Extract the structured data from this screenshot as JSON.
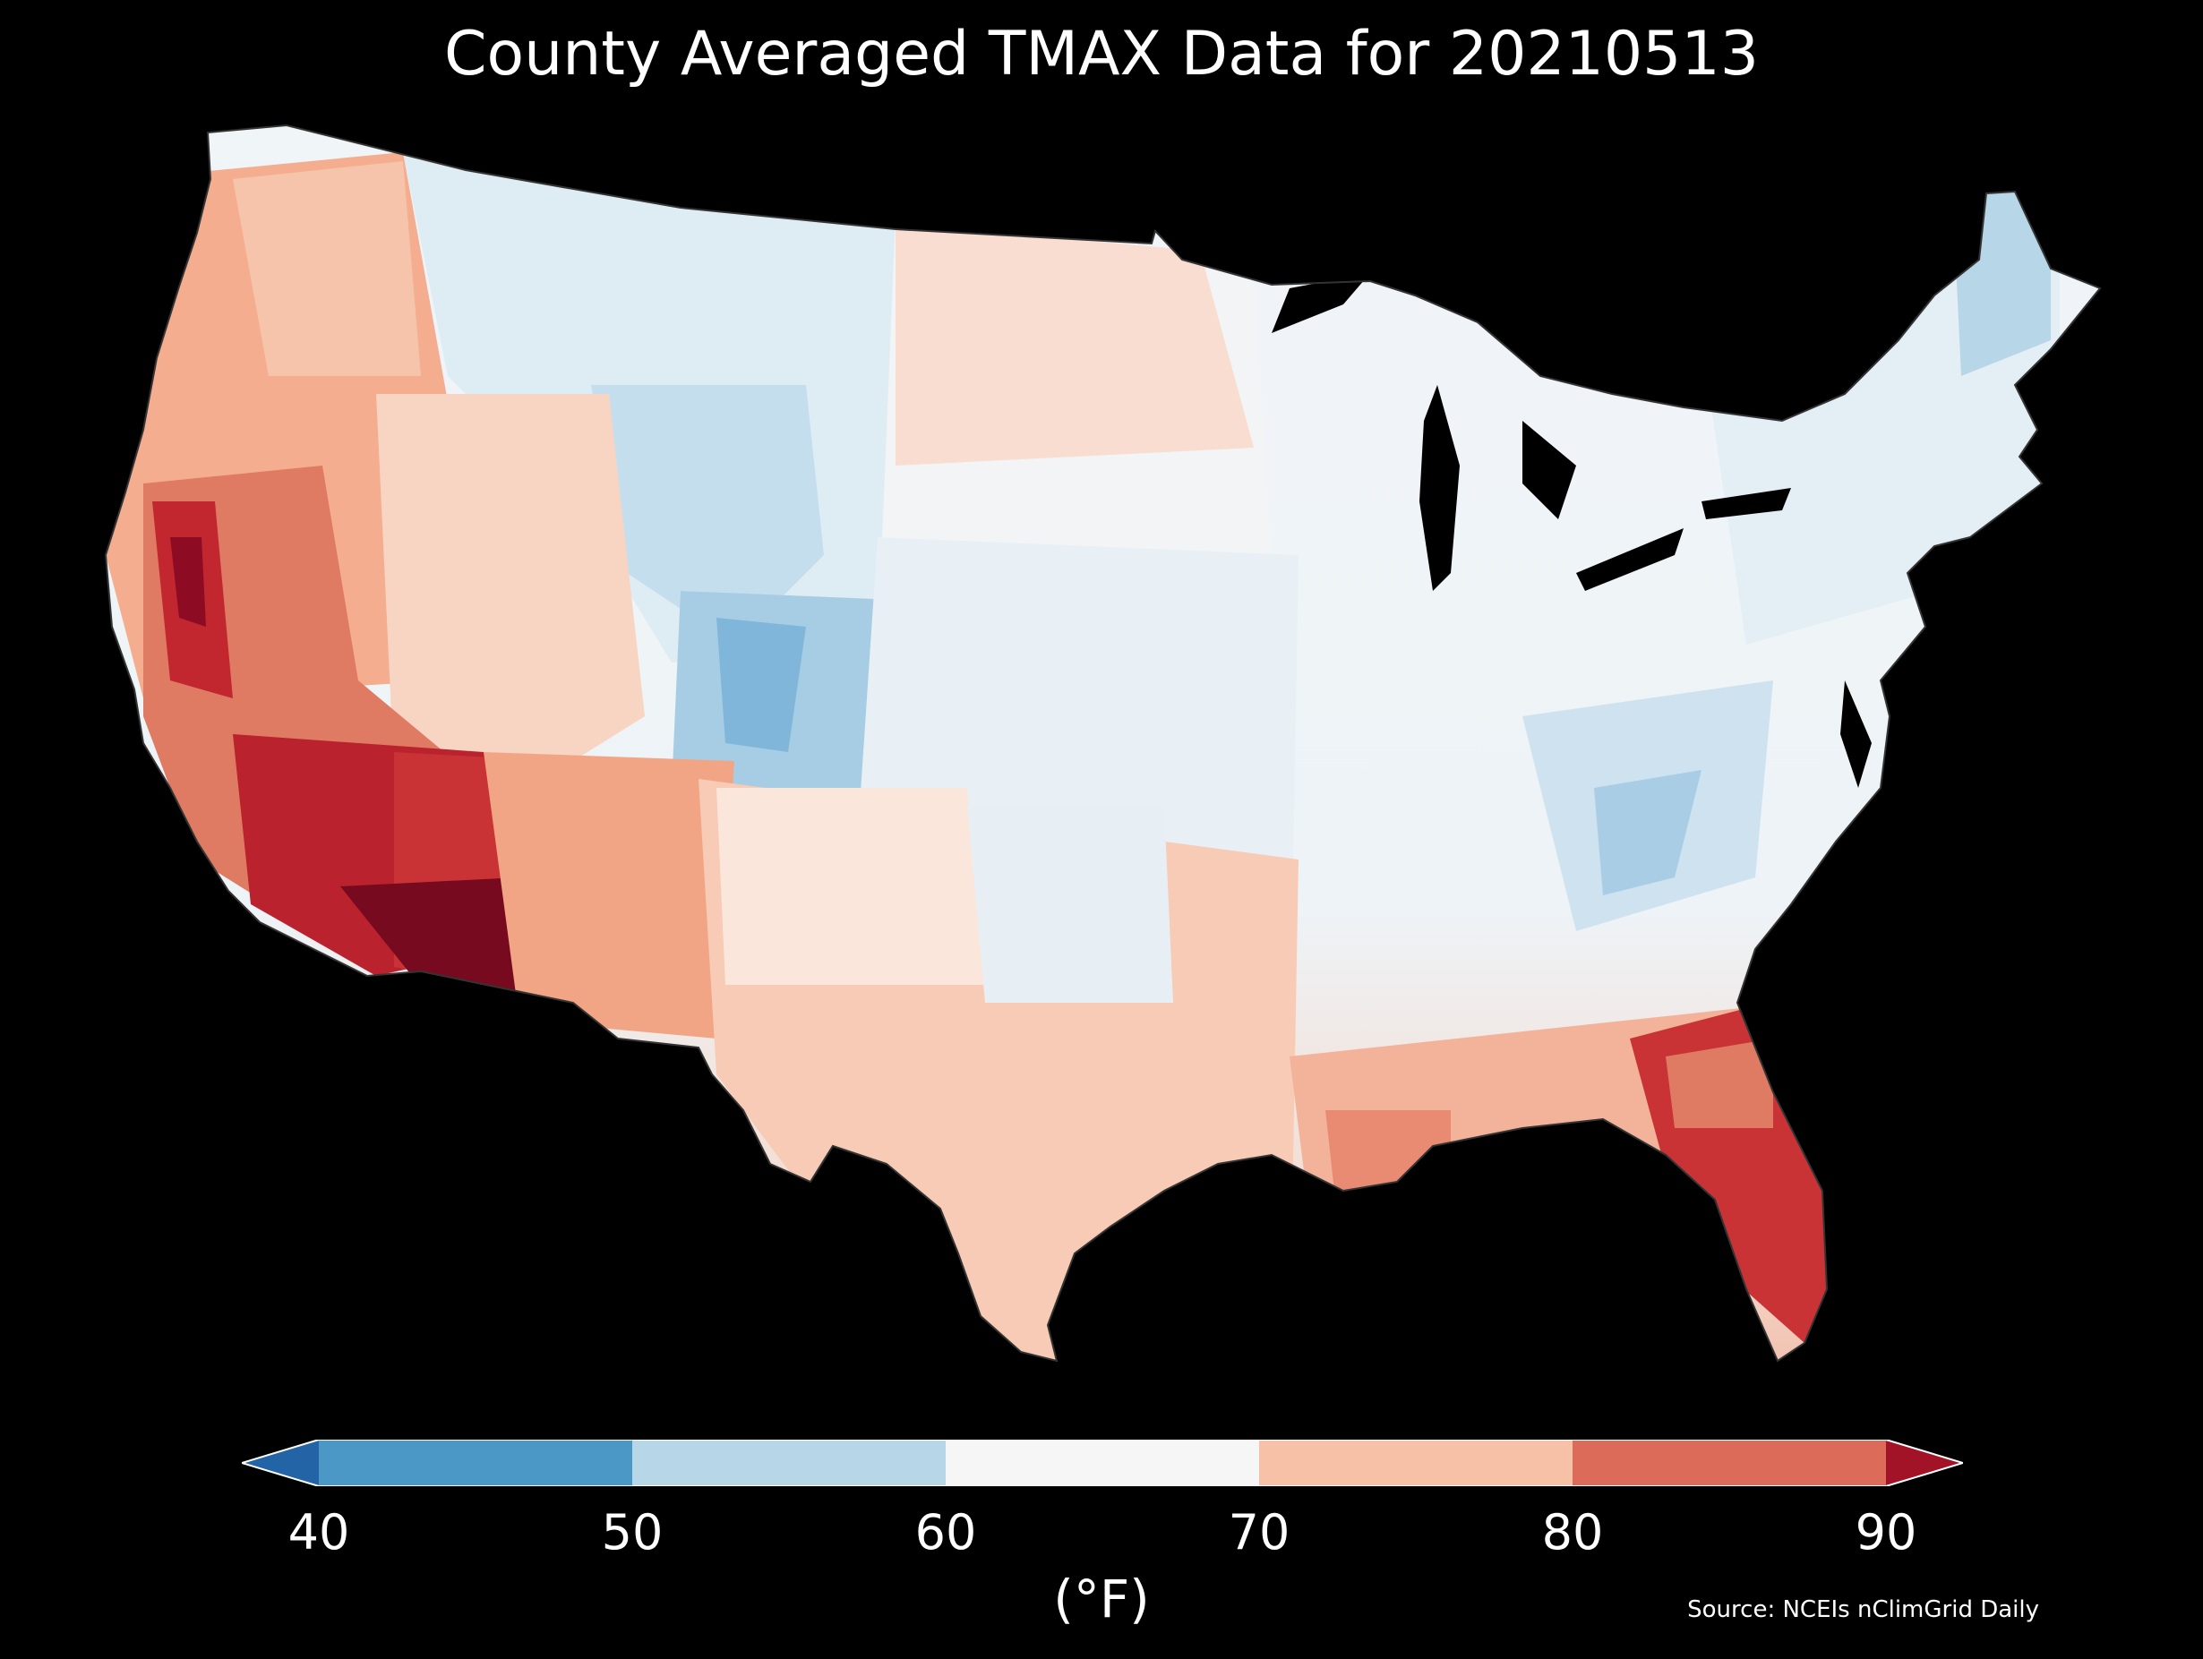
{
  "title": "County Averaged TMAX Data for 20210513",
  "colorbar": {
    "ticks": [
      "40",
      "50",
      "60",
      "70",
      "80",
      "90"
    ],
    "bins": [
      {
        "range": [
          40,
          50
        ],
        "color": "#4b97c6"
      },
      {
        "range": [
          50,
          60
        ],
        "color": "#b7d7e9"
      },
      {
        "range": [
          60,
          70
        ],
        "color": "#f6f6f6"
      },
      {
        "range": [
          70,
          80
        ],
        "color": "#f7c1a7"
      },
      {
        "range": [
          80,
          90
        ],
        "color": "#dc6b59"
      }
    ],
    "under_color": "#2264a5",
    "over_color": "#a31327",
    "unit_label": "(°F)"
  },
  "source": "Source: NCEIs nClimGrid Daily",
  "map": {
    "region": "contiguous-us-counties",
    "variable": "TMAX",
    "regional_pattern": [
      {
        "region": "Pacific Northwest",
        "bin": "70-80",
        "color": "#f5ae8e"
      },
      {
        "region": "Northern Rockies",
        "bin": "50-60",
        "color": "#d3e6f0"
      },
      {
        "region": "Central Rockies / Colorado",
        "bin": "40-50",
        "color": "#8dc0de"
      },
      {
        "region": "Northern Plains",
        "bin": "60-70",
        "color": "#f7ded2"
      },
      {
        "region": "Upper Midwest / Great Lakes",
        "bin": "60-70",
        "color": "#eef3f7"
      },
      {
        "region": "Northeast",
        "bin": "50-60",
        "color": "#dbe9f2"
      },
      {
        "region": "Maine",
        "bin": "50-60",
        "color": "#b7d7e9"
      },
      {
        "region": "Appalachians",
        "bin": "50-60",
        "color": "#a9cde4"
      },
      {
        "region": "Central Plains",
        "bin": "60-70",
        "color": "#e6eff5"
      },
      {
        "region": "Texas",
        "bin": "70-80",
        "color": "#f7cbb5"
      },
      {
        "region": "Gulf Coast",
        "bin": "70-80",
        "color": "#f0a285"
      },
      {
        "region": "Florida",
        "bin": "80-90",
        "color": "#c93336"
      },
      {
        "region": "Southern California / Arizona",
        "bin": "80-90",
        "color": "#b9202e"
      },
      {
        "region": "Arizona desert",
        "bin": ">90",
        "color": "#780a20"
      },
      {
        "region": "Central Valley CA",
        "bin": "80-90",
        "color": "#c93336"
      },
      {
        "region": "Great Basin",
        "bin": "70-80",
        "color": "#f8d2bf"
      }
    ],
    "water_color": "#000000",
    "boundary_color": "#222222"
  }
}
